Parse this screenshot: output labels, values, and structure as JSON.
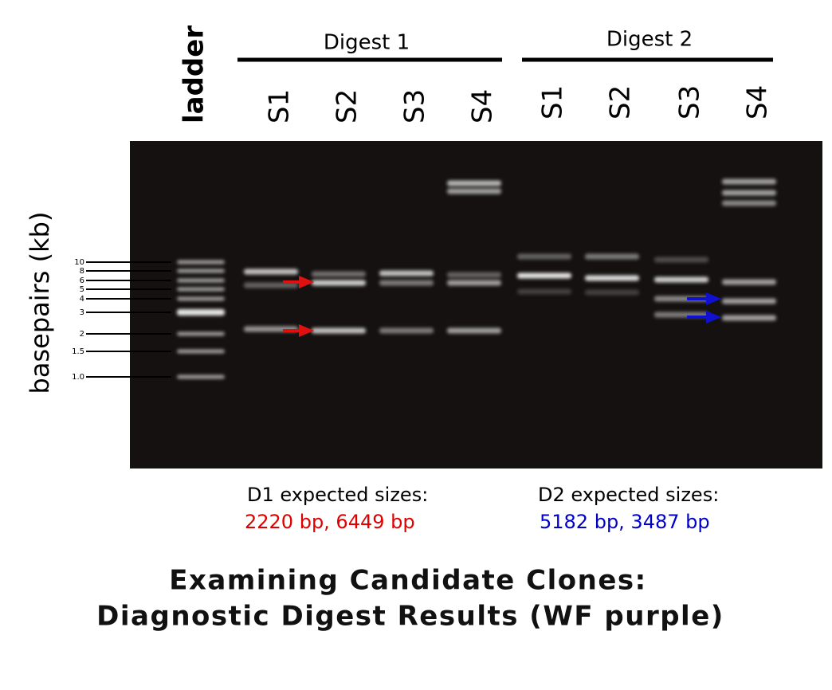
{
  "header": {
    "ladder": "ladder",
    "groups": [
      {
        "label": "Digest 1",
        "lanes": [
          "S1",
          "S2",
          "S3",
          "S4"
        ]
      },
      {
        "label": "Digest 2",
        "lanes": [
          "S1",
          "S2",
          "S3",
          "S4"
        ]
      }
    ]
  },
  "y_axis_label": "basepairs (kb)",
  "ladder_labels": [
    "10",
    "8",
    "6",
    "5",
    "4",
    "3",
    "2",
    "1.5",
    "1.0"
  ],
  "expected": [
    {
      "title": "D1 expected sizes:",
      "sizes": "2220 bp, 6449 bp"
    },
    {
      "title": "D2 expected sizes:",
      "sizes": "5182 bp, 3487 bp"
    }
  ],
  "title": [
    "Examining Candidate Clones:",
    "Diagnostic Digest Results (WF purple)"
  ]
}
